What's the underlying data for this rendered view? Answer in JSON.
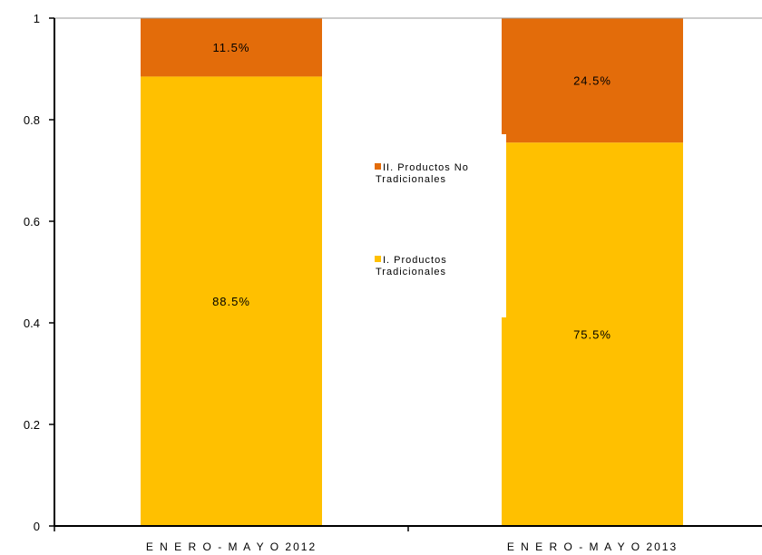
{
  "chart_data": {
    "type": "bar",
    "stacked": true,
    "categories": [
      "E N E R O - M A Y O 2012",
      "E N E R O - M A Y O 2013"
    ],
    "series": [
      {
        "name": "I. Productos Tradicionales",
        "name_lines": [
          "I. Productos",
          "Tradicionales"
        ],
        "values": [
          0.885,
          0.755
        ],
        "labels": [
          "88.5%",
          "75.5%"
        ],
        "color": "#FFC000"
      },
      {
        "name": "II. Productos No Tradicionales",
        "name_lines": [
          "II. Productos No",
          "Tradicionales"
        ],
        "values": [
          0.115,
          0.245
        ],
        "labels": [
          "11.5%",
          "24.5%"
        ],
        "color": "#E36C0A"
      }
    ],
    "y_ticks": [
      "0",
      "0.2",
      "0.4",
      "0.6",
      "0.8",
      "1"
    ],
    "ylim": [
      0,
      1
    ],
    "grid": false,
    "legend": "center"
  }
}
